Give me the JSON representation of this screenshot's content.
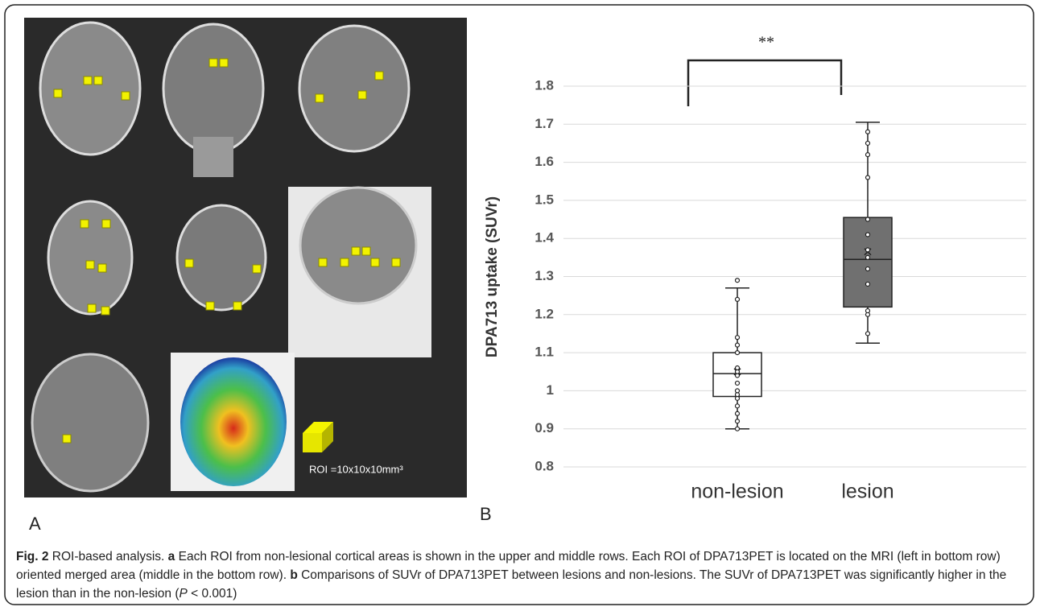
{
  "panel_a": {
    "label": "A",
    "roi_note": "ROI =10x10x10mm³"
  },
  "chart_data": {
    "type": "box",
    "panel_label": "B",
    "y_label": "DPA713 uptake (SUVr)",
    "annotation": "**",
    "categories": [
      "non-lesion",
      "lesion"
    ],
    "series": [
      {
        "color": "#ffffff",
        "min": 0.9,
        "q1": 0.985,
        "median": 1.045,
        "q3": 1.1,
        "max": 1.27,
        "mean": 1.05,
        "points": [
          0.9,
          0.92,
          0.94,
          0.96,
          0.98,
          0.99,
          1.0,
          1.02,
          1.04,
          1.05,
          1.06,
          1.1,
          1.12,
          1.14,
          1.24,
          1.29
        ]
      },
      {
        "color": "#707070",
        "min": 1.125,
        "q1": 1.22,
        "median": 1.345,
        "q3": 1.455,
        "max": 1.705,
        "mean": 1.365,
        "points": [
          1.15,
          1.2,
          1.21,
          1.28,
          1.32,
          1.35,
          1.37,
          1.41,
          1.45,
          1.56,
          1.62,
          1.65,
          1.68
        ]
      }
    ],
    "ylim": [
      0.8,
      1.8
    ],
    "yticks": [
      0.8,
      0.9,
      1,
      1.1,
      1.2,
      1.3,
      1.4,
      1.5,
      1.6,
      1.7,
      1.8
    ],
    "grid": true
  },
  "caption": {
    "label": "Fig. 2",
    "title": "ROI-based analysis.",
    "a_label": "a",
    "a_text": "Each ROI from non-lesional cortical areas is shown in the upper and middle rows. Each ROI of DPA713PET is located on the MRI (left in bottom row) oriented merged area (middle in the bottom row).",
    "b_label": "b",
    "b_text_1": "Comparisons of SUVr of DPA713PET between lesions and non-lesions. The SUVr of DPA713PET was significantly higher in the lesion than in the non-lesion (",
    "p": "P",
    "b_text_2": " < 0.001)"
  }
}
